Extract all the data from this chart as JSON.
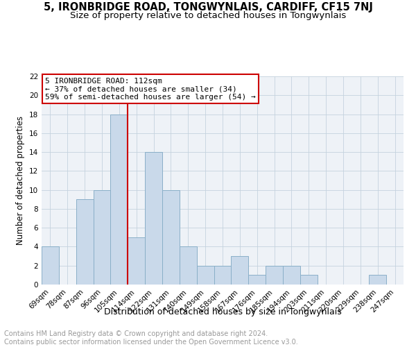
{
  "title": "5, IRONBRIDGE ROAD, TONGWYNLAIS, CARDIFF, CF15 7NJ",
  "subtitle": "Size of property relative to detached houses in Tongwynlais",
  "xlabel": "Distribution of detached houses by size in Tongwynlais",
  "ylabel": "Number of detached properties",
  "categories": [
    "69sqm",
    "78sqm",
    "87sqm",
    "96sqm",
    "105sqm",
    "114sqm",
    "122sqm",
    "131sqm",
    "140sqm",
    "149sqm",
    "158sqm",
    "167sqm",
    "176sqm",
    "185sqm",
    "194sqm",
    "203sqm",
    "211sqm",
    "220sqm",
    "229sqm",
    "238sqm",
    "247sqm"
  ],
  "values": [
    4,
    0,
    9,
    10,
    18,
    5,
    14,
    10,
    4,
    2,
    2,
    3,
    1,
    2,
    2,
    1,
    0,
    0,
    0,
    1,
    0
  ],
  "bar_color": "#c9d9ea",
  "bar_edge_color": "#8aafc8",
  "vline_x_index": 4.5,
  "annotation_line1": "5 IRONBRIDGE ROAD: 112sqm",
  "annotation_line2": "← 37% of detached houses are smaller (34)",
  "annotation_line3": "59% of semi-detached houses are larger (54) →",
  "annotation_box_facecolor": "#ffffff",
  "annotation_box_edgecolor": "#cc0000",
  "vline_color": "#cc0000",
  "grid_color": "#c5d2de",
  "bg_color": "#eef2f7",
  "footer_line1": "Contains HM Land Registry data © Crown copyright and database right 2024.",
  "footer_line2": "Contains public sector information licensed under the Open Government Licence v3.0.",
  "footer_color": "#999999",
  "ylim": [
    0,
    22
  ],
  "yticks": [
    0,
    2,
    4,
    6,
    8,
    10,
    12,
    14,
    16,
    18,
    20,
    22
  ],
  "title_fontsize": 10.5,
  "subtitle_fontsize": 9.5,
  "xlabel_fontsize": 9,
  "ylabel_fontsize": 8.5,
  "tick_fontsize": 7.5,
  "footer_fontsize": 7,
  "annotation_fontsize": 8
}
